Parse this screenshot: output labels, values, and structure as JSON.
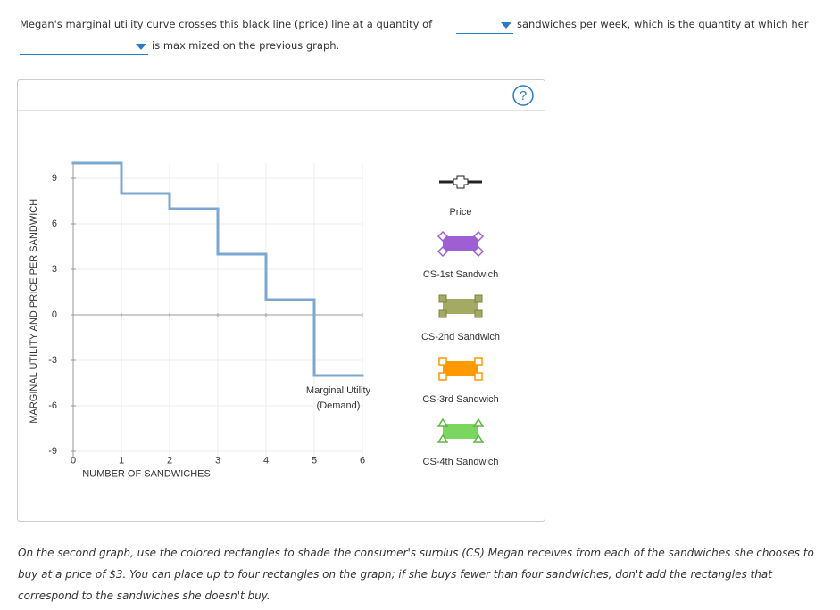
{
  "question": {
    "part1": "Megan's marginal utility curve crosses this black line (price) line at a quantity of",
    "part2": "sandwiches per week, which is the quantity at which her",
    "part3": "is maximized on the previous graph."
  },
  "help": "?",
  "chart_data": {
    "type": "step",
    "xlabel": "NUMBER OF SANDWICHES",
    "ylabel": "MARGINAL UTILITY AND PRICE PER SANDWICH",
    "curve_label": [
      "Marginal Utility",
      "(Demand)"
    ],
    "x": [
      1,
      2,
      3,
      4,
      5,
      6
    ],
    "values": [
      10,
      8,
      7,
      4,
      1,
      -4
    ],
    "color": "#7ba7d1",
    "xlim": [
      0,
      6
    ],
    "xticks": [
      0,
      1,
      2,
      3,
      4,
      5,
      6
    ],
    "ylim": [
      -9.5,
      10
    ],
    "yticks": [
      9,
      6,
      3,
      0,
      -3,
      -6,
      -9
    ],
    "grid": true
  },
  "tools": [
    "Price",
    "CS-1st Sandwich",
    "CS-2nd Sandwich",
    "CS-3rd Sandwich",
    "CS-4th Sandwich"
  ],
  "instructions": "On the second graph, use the colored rectangles to shade the consumer's surplus (CS) Megan receives from each of the sandwiches she chooses to buy at a price of $3. You can place up to four rectangles on the graph; if she buys fewer than four sandwiches, don't add the rectangles that correspond to the sandwiches she doesn't buy."
}
